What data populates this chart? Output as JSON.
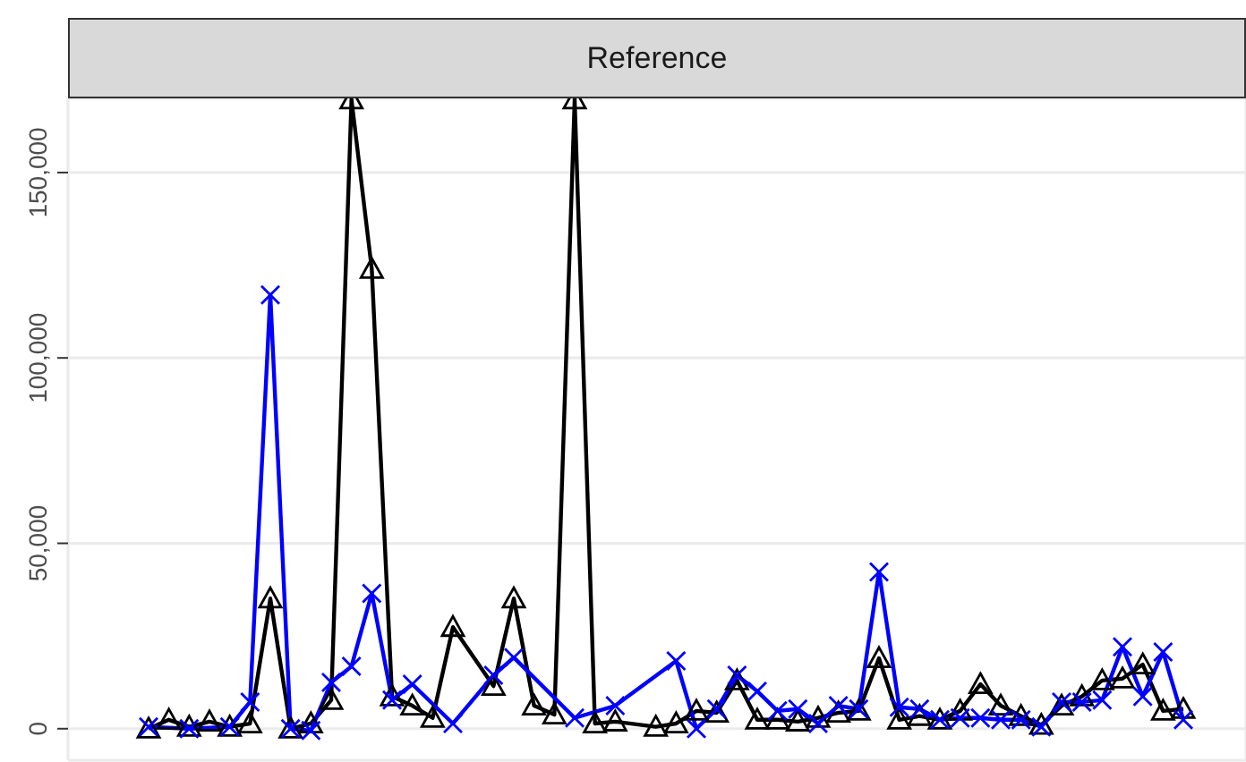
{
  "chart_data": {
    "type": "line",
    "title": "Reference",
    "categories": [
      null,
      null,
      null,
      null,
      null,
      null,
      null,
      null,
      null,
      null,
      null,
      null,
      null,
      null,
      null,
      null,
      null,
      null,
      null,
      null,
      null,
      null,
      null,
      null,
      null,
      null,
      null,
      null,
      null,
      null,
      null,
      null,
      null,
      null,
      null,
      null,
      null,
      null,
      null,
      null,
      null,
      null,
      null,
      null,
      null,
      null,
      null,
      null,
      null,
      null,
      null,
      null
    ],
    "series": [
      {
        "color": "#000000",
        "marker": "triangle",
        "values": [
          0,
          2400,
          500,
          1900,
          500,
          1400,
          35100,
          0,
          1400,
          7700,
          169700,
          124000,
          8700,
          6200,
          2900,
          27400,
          null,
          11500,
          35100,
          6200,
          3800,
          169700,
          1400,
          1900,
          null,
          500,
          1400,
          4800,
          4300,
          13000,
          2400,
          2400,
          1900,
          2900,
          4300,
          4800,
          19000,
          2400,
          3400,
          2400,
          4800,
          12000,
          6200,
          3400,
          1000,
          6200,
          8700,
          13000,
          13500,
          17300,
          4800,
          5300
        ]
      },
      {
        "color": "#0000ff",
        "marker": "cross",
        "values": [
          500,
          null,
          0,
          null,
          500,
          7200,
          117000,
          0,
          -500,
          12500,
          16800,
          36500,
          7700,
          12000,
          null,
          1400,
          null,
          14400,
          19200,
          null,
          null,
          2900,
          null,
          6200,
          null,
          null,
          18300,
          0,
          5300,
          14400,
          10100,
          4800,
          5300,
          1400,
          6200,
          5300,
          42300,
          5800,
          5300,
          2400,
          2900,
          2900,
          2400,
          2400,
          500,
          7200,
          7200,
          7700,
          22100,
          8700,
          20700,
          2400
        ]
      }
    ],
    "ylim": [
      -8500,
      170000
    ],
    "yticks": [
      {
        "value": 0,
        "label": "0"
      },
      {
        "value": 50000,
        "label": "50,000"
      },
      {
        "value": 100000,
        "label": "100,000"
      },
      {
        "value": 150000,
        "label": "150,000"
      }
    ],
    "grid": true,
    "tick_labels": "y",
    "line_style": "solid"
  }
}
